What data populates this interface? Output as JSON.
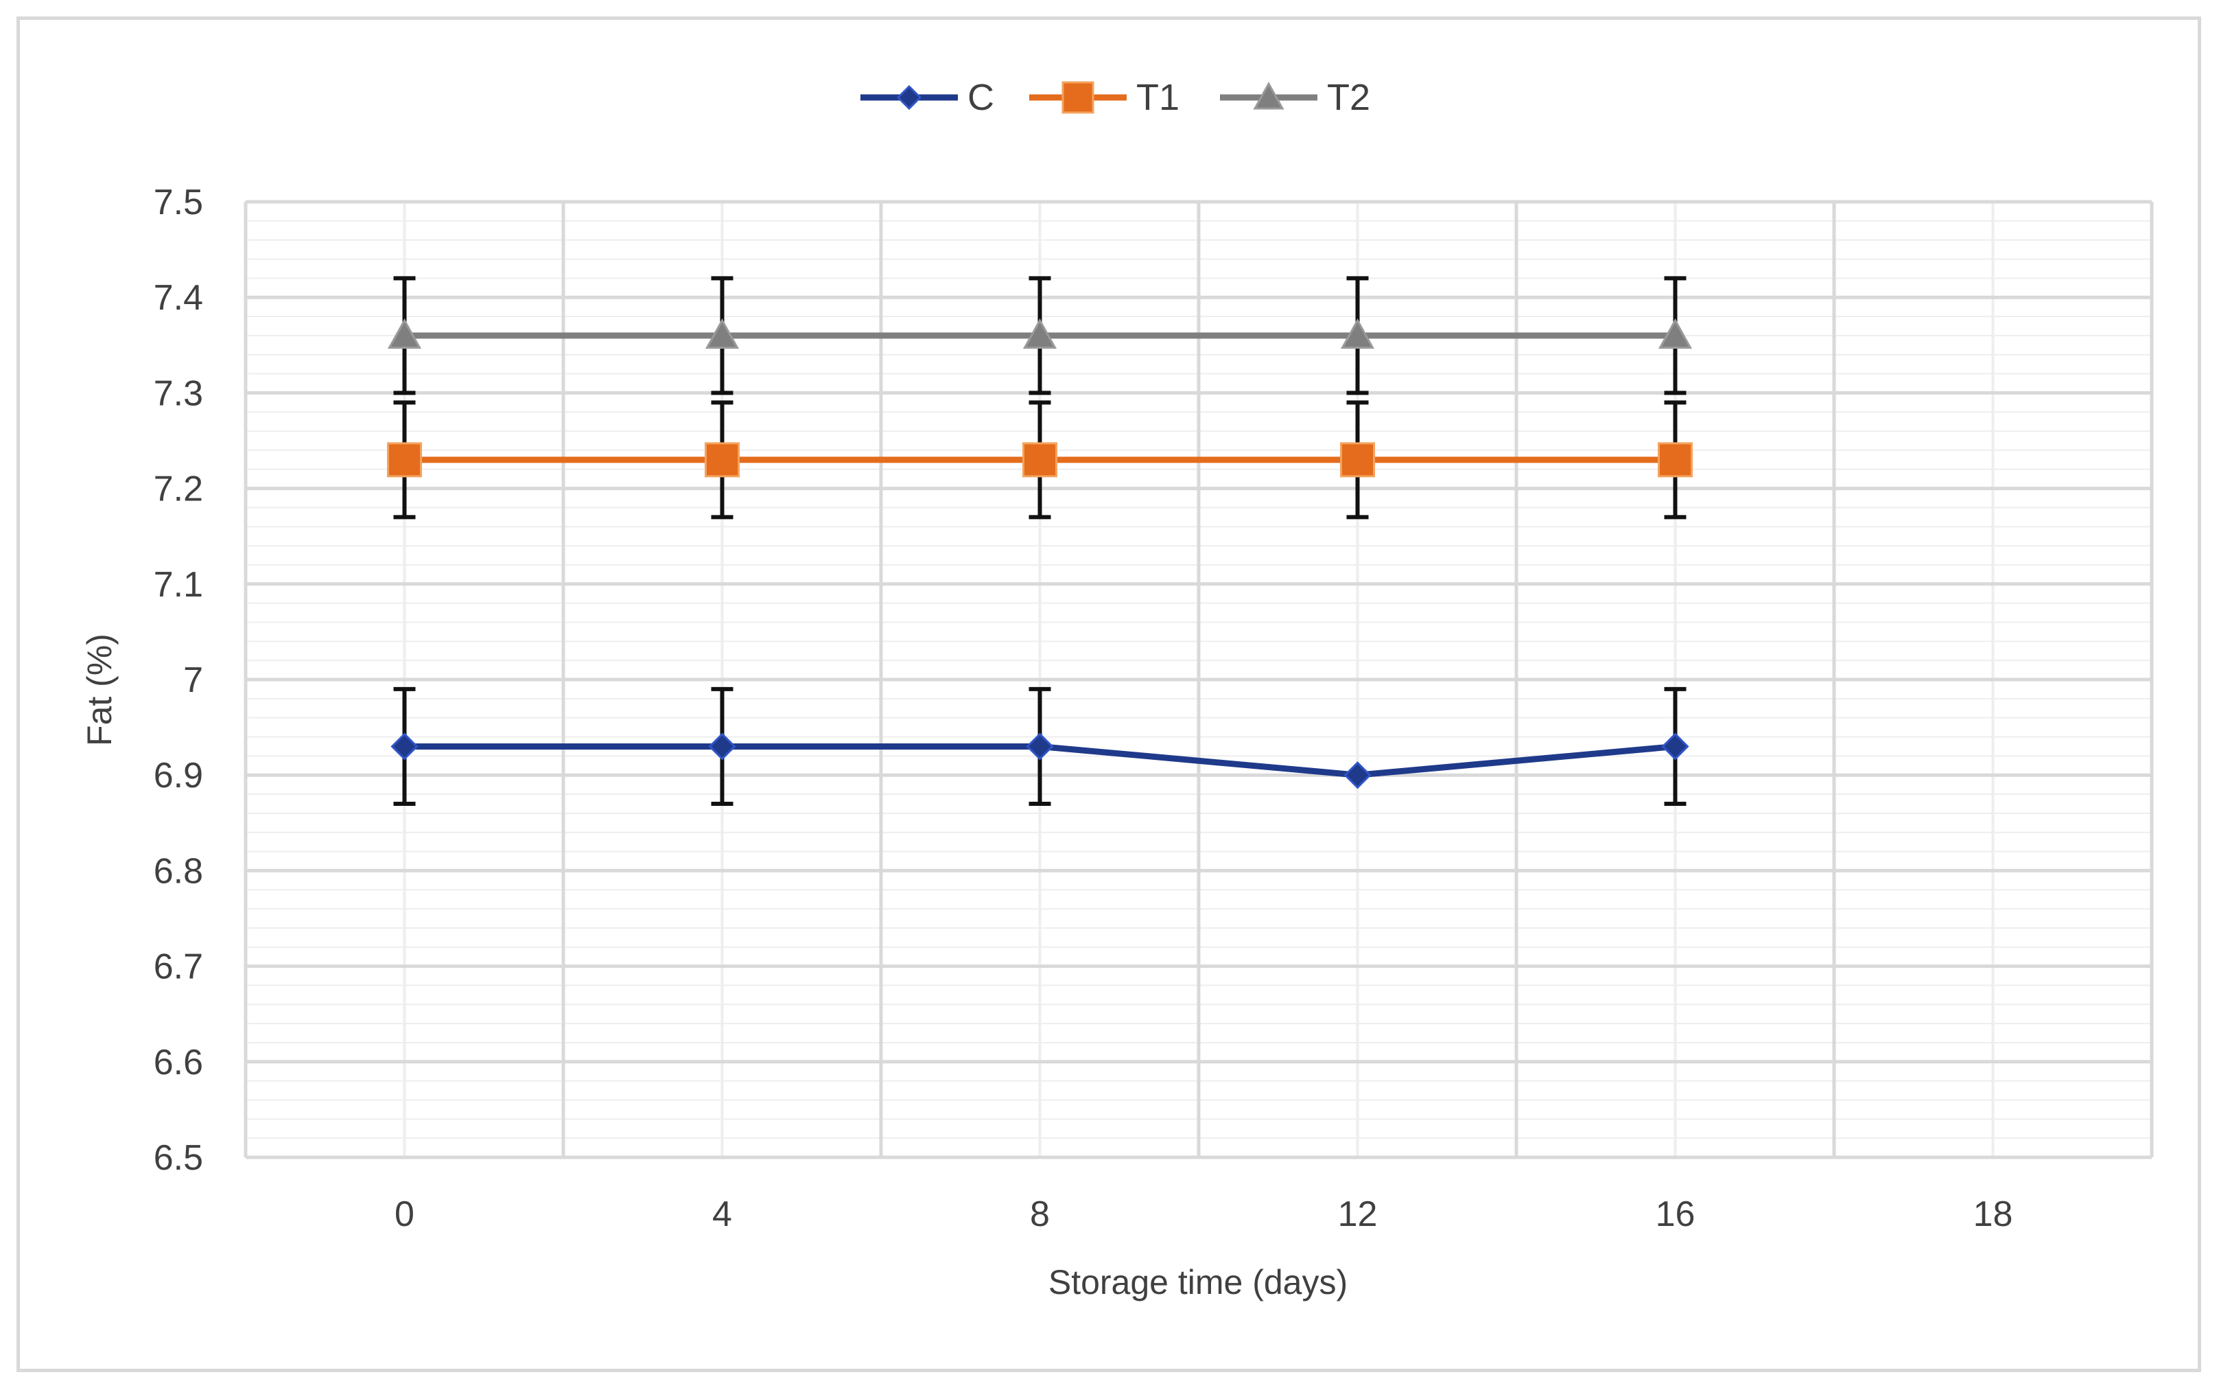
{
  "chart_data": {
    "type": "line",
    "xlabel": "Storage time (days)",
    "ylabel": "Fat (%)",
    "x_ticks": [
      "0",
      "4",
      "8",
      "12",
      "16",
      "18"
    ],
    "y_ticks": [
      "6.5",
      "6.6",
      "6.7",
      "6.8",
      "6.9",
      "7",
      "7.1",
      "7.2",
      "7.3",
      "7.4",
      "7.5"
    ],
    "ylim": [
      6.5,
      7.5
    ],
    "grid": true,
    "legend_position": "top",
    "series": [
      {
        "name": "C",
        "color": "#1f3a8a",
        "marker": "diamond",
        "values": [
          6.93,
          6.93,
          6.93,
          6.9,
          6.93
        ],
        "error": [
          0.06,
          0.06,
          0.06,
          null,
          0.06
        ]
      },
      {
        "name": "T1",
        "color": "#e46c1c",
        "marker": "square",
        "values": [
          7.23,
          7.23,
          7.23,
          7.23,
          7.23
        ],
        "error": [
          0.06,
          0.06,
          0.06,
          0.06,
          0.06
        ]
      },
      {
        "name": "T2",
        "color": "#7f7f7f",
        "marker": "triangle",
        "values": [
          7.36,
          7.36,
          7.36,
          7.36,
          7.36
        ],
        "error": [
          0.06,
          0.06,
          0.06,
          0.06,
          0.06
        ]
      }
    ]
  }
}
